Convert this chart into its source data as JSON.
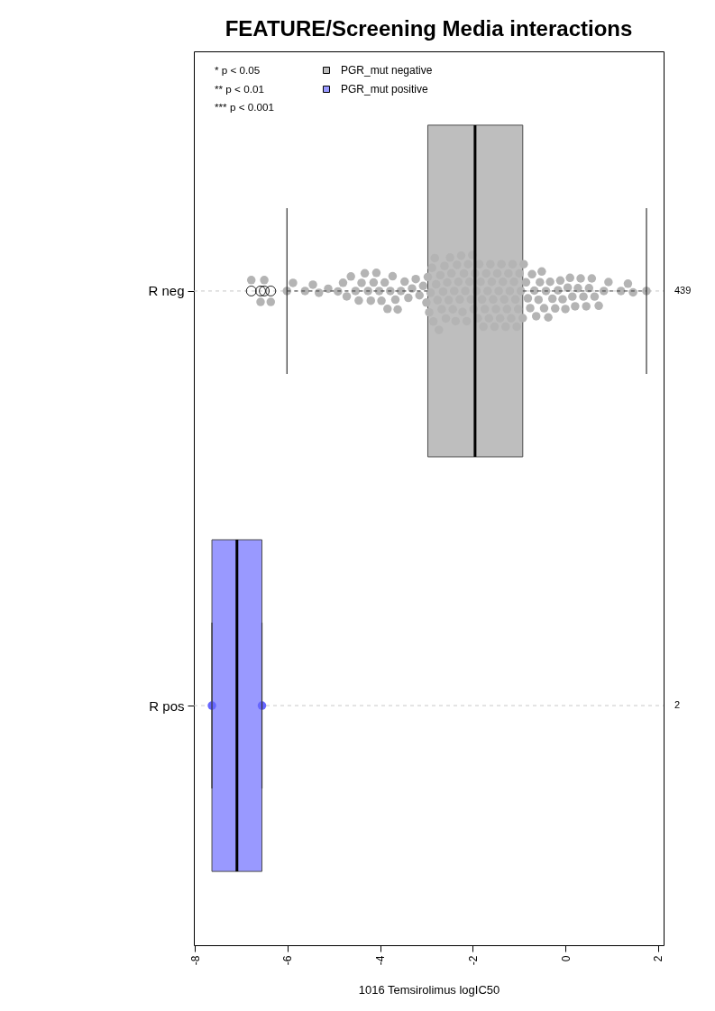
{
  "chart_data": {
    "type": "box",
    "title": "FEATURE/Screening Media interactions",
    "xlabel": "1016 Temsirolimus logIC50",
    "orientation": "horizontal",
    "categories": [
      "R neg",
      "R pos"
    ],
    "y2_categories": [
      "439",
      "2"
    ],
    "xlim": [
      -8.02,
      2.12
    ],
    "xticks": [
      -8,
      -6,
      -4,
      -2,
      0,
      2
    ],
    "grid": "y",
    "legend": "top left",
    "annotations": [
      "* p < 0.05",
      "** p < 0.01",
      "*** p < 0.001"
    ],
    "series": [
      {
        "name": "PGR_mut negative",
        "color": "#bebebe",
        "boxes": [
          {
            "low": -6.01,
            "q1": -2.97,
            "median": -1.95,
            "q3": -0.92,
            "high": 1.75,
            "outliers": [
              -6.78,
              -6.58,
              -6.5,
              -6.36
            ]
          },
          null
        ]
      },
      {
        "name": "PGR_mut positive",
        "color": "#9999ff",
        "boxes": [
          null,
          {
            "low": -7.63,
            "q1": -7.63,
            "median": -7.09,
            "q3": -6.55,
            "high": -6.55
          }
        ]
      },
      {
        "type": "scatter",
        "color": "#b4b4b4",
        "marker": "circle",
        "x": [
          "R neg",
          "R neg",
          "R neg",
          "R neg",
          "R neg",
          "R neg",
          "R neg",
          "R neg",
          "R neg",
          "R neg",
          "R neg",
          "R neg",
          "R neg",
          "R neg",
          "R neg",
          "R neg",
          "R neg",
          "R neg",
          "R neg",
          "R neg",
          "R neg",
          "R neg",
          "R neg",
          "R neg",
          "R neg",
          "R neg",
          "R neg",
          "R neg",
          "R neg",
          "R neg",
          "R neg",
          "R neg",
          "R neg",
          "R neg",
          "R neg",
          "R neg",
          "R neg",
          "R neg",
          "R neg",
          "R neg",
          "R neg",
          "R neg",
          "R neg",
          "R neg",
          "R neg",
          "R neg",
          "R neg",
          "R neg",
          "R neg",
          "R neg",
          "R neg",
          "R neg",
          "R neg",
          "R neg",
          "R neg",
          "R neg",
          "R neg",
          "R neg",
          "R neg",
          "R neg",
          "R neg",
          "R neg",
          "R neg",
          "R neg",
          "R neg",
          "R neg",
          "R neg",
          "R neg",
          "R neg",
          "R neg",
          "R neg",
          "R neg",
          "R neg",
          "R neg",
          "R neg",
          "R neg",
          "R neg",
          "R neg",
          "R neg",
          "R neg",
          "R neg",
          "R neg",
          "R neg",
          "R neg",
          "R neg",
          "R neg",
          "R neg",
          "R neg",
          "R neg",
          "R neg",
          "R neg",
          "R neg",
          "R neg",
          "R neg",
          "R neg",
          "R neg",
          "R neg",
          "R neg",
          "R neg",
          "R neg",
          "R neg",
          "R neg",
          "R neg",
          "R neg",
          "R neg",
          "R neg",
          "R neg",
          "R neg",
          "R neg",
          "R neg",
          "R neg",
          "R neg",
          "R neg",
          "R neg",
          "R neg",
          "R neg",
          "R neg",
          "R neg",
          "R neg",
          "R neg",
          "R neg",
          "R neg",
          "R neg",
          "R neg",
          "R neg",
          "R neg",
          "R neg",
          "R neg",
          "R neg",
          "R neg",
          "R neg",
          "R neg",
          "R neg",
          "R neg",
          "R neg",
          "R neg",
          "R neg",
          "R neg",
          "R neg",
          "R neg",
          "R neg",
          "R neg",
          "R neg",
          "R neg",
          "R neg"
        ],
        "values": [
          -6.78,
          -6.58,
          -6.5,
          -6.36,
          -6.01,
          -5.88,
          -5.62,
          -5.45,
          -5.32,
          -5.12,
          -4.91,
          -4.8,
          -4.72,
          -4.63,
          -4.53,
          -4.46,
          -4.4,
          -4.33,
          -4.26,
          -4.2,
          -4.14,
          -4.08,
          -4.02,
          -3.97,
          -3.9,
          -3.84,
          -3.78,
          -3.73,
          -3.67,
          -3.62,
          -3.55,
          -3.47,
          -3.39,
          -3.31,
          -3.23,
          -3.15,
          -3.07,
          -3,
          -2.97,
          -2.94,
          -2.91,
          -2.88,
          -2.85,
          -2.82,
          -2.79,
          -2.76,
          -2.73,
          -2.7,
          -2.67,
          -2.64,
          -2.61,
          -2.58,
          -2.55,
          -2.52,
          -2.49,
          -2.46,
          -2.43,
          -2.4,
          -2.37,
          -2.34,
          -2.31,
          -2.28,
          -2.25,
          -2.22,
          -2.19,
          -2.16,
          -2.13,
          -2.1,
          -2.07,
          -2.04,
          -2.01,
          -1.98,
          -1.95,
          -1.92,
          -1.89,
          -1.86,
          -1.83,
          -1.8,
          -1.77,
          -1.74,
          -1.71,
          -1.68,
          -1.65,
          -1.62,
          -1.59,
          -1.56,
          -1.53,
          -1.5,
          -1.47,
          -1.44,
          -1.41,
          -1.38,
          -1.35,
          -1.32,
          -1.29,
          -1.26,
          -1.23,
          -1.2,
          -1.17,
          -1.14,
          -1.11,
          -1.08,
          -1.05,
          -1.02,
          -0.99,
          -0.96,
          -0.92,
          -0.9,
          -0.85,
          -0.81,
          -0.76,
          -0.72,
          -0.67,
          -0.63,
          -0.58,
          -0.55,
          -0.51,
          -0.46,
          -0.42,
          -0.37,
          -0.33,
          -0.28,
          -0.22,
          -0.16,
          -0.11,
          -0.06,
          0,
          0.05,
          0.1,
          0.15,
          0.21,
          0.27,
          0.33,
          0.39,
          0.45,
          0.51,
          0.57,
          0.63,
          0.72,
          0.83,
          0.93,
          1.2,
          1.35,
          1.46,
          1.75
        ]
      },
      {
        "type": "scatter",
        "color": "#6666ff",
        "marker": "circle",
        "x": [
          "R pos",
          "R pos"
        ],
        "values": [
          -7.63,
          -6.55
        ]
      }
    ]
  }
}
